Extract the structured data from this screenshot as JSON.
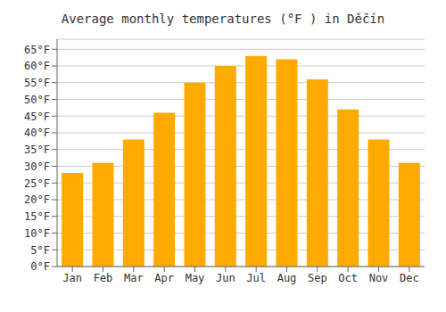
{
  "chart_data": {
    "type": "bar",
    "title": "Average monthly temperatures (°F ) in Děčín",
    "categories": [
      "Jan",
      "Feb",
      "Mar",
      "Apr",
      "May",
      "Jun",
      "Jul",
      "Aug",
      "Sep",
      "Oct",
      "Nov",
      "Dec"
    ],
    "values": [
      28,
      31,
      38,
      46,
      55,
      60,
      63,
      62,
      56,
      47,
      38,
      31
    ],
    "color": "#FFAA00",
    "ylim": [
      0,
      68
    ],
    "yticks": [
      {
        "value": 0,
        "label": "0°F"
      },
      {
        "value": 5,
        "label": "5°F"
      },
      {
        "value": 10,
        "label": "10°F"
      },
      {
        "value": 15,
        "label": "15°F"
      },
      {
        "value": 20,
        "label": "20°F"
      },
      {
        "value": 25,
        "label": "25°F"
      },
      {
        "value": 30,
        "label": "30°F"
      },
      {
        "value": 35,
        "label": "35°F"
      },
      {
        "value": 40,
        "label": "40°F"
      },
      {
        "value": 45,
        "label": "45°F"
      },
      {
        "value": 50,
        "label": "50°F"
      },
      {
        "value": 55,
        "label": "55°F"
      },
      {
        "value": 60,
        "label": "60°F"
      },
      {
        "value": 65,
        "label": "65°F"
      }
    ],
    "grid": true
  }
}
